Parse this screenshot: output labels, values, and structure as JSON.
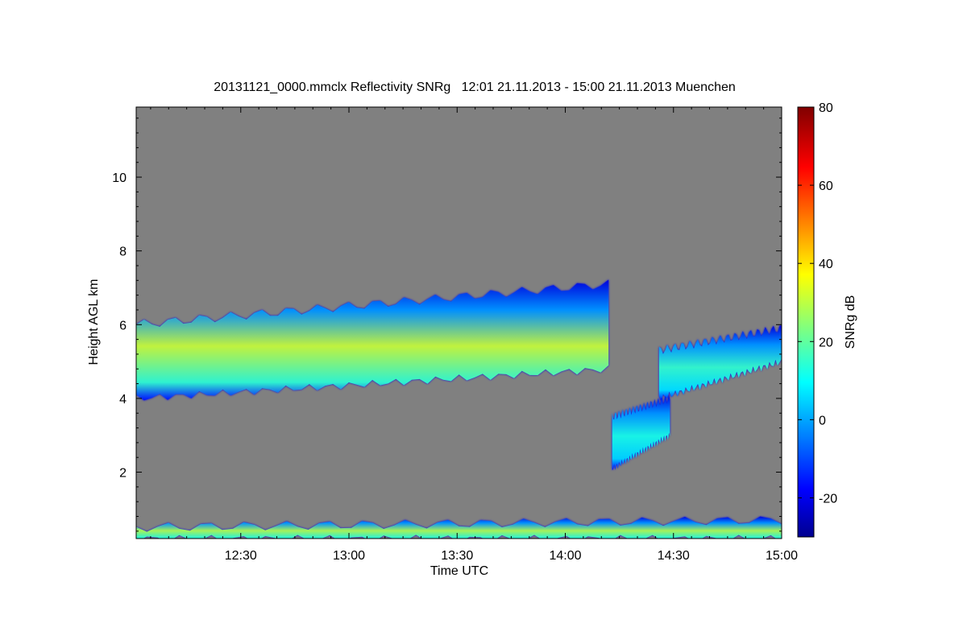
{
  "chart_data": {
    "type": "heatmap",
    "title": "20131121_0000.mmclx Reflectivity SNRg   12:01 21.11.2013 - 15:00 21.11.2013 Muenchen",
    "xlabel": "Time UTC",
    "ylabel": "Height AGL km",
    "colorbar_label": "SNRg dB",
    "x_range_minutes": [
      721,
      900
    ],
    "xlim_labels": [
      "12:01",
      "15:00"
    ],
    "x_ticks": [
      {
        "minute": 750,
        "label": "12:30"
      },
      {
        "minute": 780,
        "label": "13:00"
      },
      {
        "minute": 810,
        "label": "13:30"
      },
      {
        "minute": 840,
        "label": "14:00"
      },
      {
        "minute": 870,
        "label": "14:30"
      },
      {
        "minute": 900,
        "label": "15:00"
      }
    ],
    "ylim": [
      0.2,
      11.9
    ],
    "y_ticks": [
      2,
      4,
      6,
      8,
      10
    ],
    "colorbar_range": [
      -30,
      80
    ],
    "colorbar_ticks": [
      -20,
      0,
      20,
      40,
      60,
      80
    ],
    "colormap": "jet",
    "missing_color": "#808080",
    "echo_regions": [
      {
        "name": "main cloud layer",
        "time": [
          "12:01",
          "14:12"
        ],
        "base_km": [
          4.0,
          4.8
        ],
        "top_km": [
          6.0,
          7.1
        ],
        "peak_dB": 33
      },
      {
        "name": "cloud after gap",
        "time": [
          "14:26",
          "15:00"
        ],
        "base_km": [
          4.0,
          5.0
        ],
        "top_km": [
          5.3,
          5.9
        ],
        "peak_dB": 17
      },
      {
        "name": "falling streak",
        "time": [
          "14:13",
          "14:29"
        ],
        "base_km": [
          2.1,
          3.0
        ],
        "top_km": [
          3.5,
          4.0
        ],
        "peak_dB": 14
      },
      {
        "name": "near-surface layer",
        "time": [
          "12:01",
          "15:00"
        ],
        "base_km": [
          0.2,
          0.2
        ],
        "top_km": [
          0.5,
          0.7
        ],
        "peak_dB": 30
      }
    ]
  }
}
